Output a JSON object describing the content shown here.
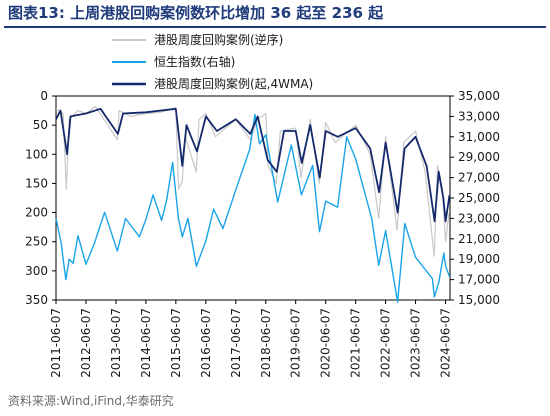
{
  "figure": {
    "title": "图表13:  上周港股回购案例数环比增加 36 起至 236 起",
    "source": "资料来源:Wind,iFind,华泰研究"
  },
  "chart_data": {
    "type": "line",
    "x_ticks": [
      "2011-06-07",
      "2012-06-07",
      "2013-06-07",
      "2014-06-07",
      "2015-06-07",
      "2016-06-07",
      "2017-06-07",
      "2018-06-07",
      "2019-06-07",
      "2020-06-07",
      "2021-06-07",
      "2022-06-07",
      "2023-06-07",
      "2024-06-07"
    ],
    "x_range": [
      "2011-06-07",
      "2024-07-31"
    ],
    "y_left": {
      "ticks": [
        0,
        50,
        100,
        150,
        200,
        250,
        300,
        350
      ],
      "range": [
        0,
        350
      ],
      "inverted": true
    },
    "y_right": {
      "ticks": [
        "15,000",
        "17,000",
        "19,000",
        "21,000",
        "23,000",
        "25,000",
        "27,000",
        "29,000",
        "31,000",
        "33,000",
        "35,000"
      ],
      "range": [
        15000,
        35000
      ]
    },
    "legend_position": "top-center",
    "series": [
      {
        "name": "港股周度回购案例(逆序)",
        "axis": "left",
        "color": "#c8c8c8",
        "points": [
          [
            "2011-06-07",
            22
          ],
          [
            "2011-09-01",
            30
          ],
          [
            "2011-10-10",
            160
          ],
          [
            "2011-11-15",
            40
          ],
          [
            "2012-03-01",
            25
          ],
          [
            "2012-06-07",
            30
          ],
          [
            "2012-10-01",
            18
          ],
          [
            "2013-06-25",
            75
          ],
          [
            "2013-07-15",
            25
          ],
          [
            "2013-12-01",
            35
          ],
          [
            "2014-06-07",
            30
          ],
          [
            "2014-12-01",
            28
          ],
          [
            "2015-06-07",
            20
          ],
          [
            "2015-07-10",
            160
          ],
          [
            "2015-08-25",
            145
          ],
          [
            "2015-10-01",
            70
          ],
          [
            "2016-02-10",
            130
          ],
          [
            "2016-03-15",
            40
          ],
          [
            "2016-06-07",
            30
          ],
          [
            "2016-10-01",
            70
          ],
          [
            "2017-06-07",
            40
          ],
          [
            "2017-12-01",
            75
          ],
          [
            "2018-03-01",
            40
          ],
          [
            "2018-06-07",
            30
          ],
          [
            "2018-07-05",
            120
          ],
          [
            "2018-10-15",
            150
          ],
          [
            "2018-12-01",
            60
          ],
          [
            "2019-06-07",
            55
          ],
          [
            "2019-08-10",
            140
          ],
          [
            "2019-12-01",
            40
          ],
          [
            "2020-03-20",
            150
          ],
          [
            "2020-06-07",
            45
          ],
          [
            "2020-10-01",
            80
          ],
          [
            "2021-06-07",
            50
          ],
          [
            "2021-12-01",
            100
          ],
          [
            "2022-03-15",
            210
          ],
          [
            "2022-06-07",
            70
          ],
          [
            "2022-10-25",
            230
          ],
          [
            "2023-01-15",
            80
          ],
          [
            "2023-06-07",
            60
          ],
          [
            "2023-10-01",
            130
          ],
          [
            "2024-01-20",
            275
          ],
          [
            "2024-03-01",
            120
          ],
          [
            "2024-05-01",
            160
          ],
          [
            "2024-06-07",
            250
          ],
          [
            "2024-07-20",
            200
          ]
        ]
      },
      {
        "name": "恒生指数(右轴)",
        "axis": "right",
        "color": "#1aa4e8",
        "points": [
          [
            "2011-06-07",
            23000
          ],
          [
            "2011-08-10",
            20500
          ],
          [
            "2011-10-04",
            17000
          ],
          [
            "2011-11-15",
            19000
          ],
          [
            "2012-01-01",
            18600
          ],
          [
            "2012-03-01",
            21300
          ],
          [
            "2012-06-07",
            18500
          ],
          [
            "2012-09-15",
            20500
          ],
          [
            "2013-01-20",
            23600
          ],
          [
            "2013-06-25",
            19800
          ],
          [
            "2013-10-01",
            23000
          ],
          [
            "2014-03-20",
            21200
          ],
          [
            "2014-06-07",
            22900
          ],
          [
            "2014-09-03",
            25300
          ],
          [
            "2014-12-15",
            22800
          ],
          [
            "2015-02-15",
            24800
          ],
          [
            "2015-04-28",
            28500
          ],
          [
            "2015-07-08",
            23000
          ],
          [
            "2015-08-25",
            21200
          ],
          [
            "2015-11-01",
            23000
          ],
          [
            "2016-02-12",
            18300
          ],
          [
            "2016-06-07",
            20800
          ],
          [
            "2016-09-09",
            23900
          ],
          [
            "2016-12-31",
            22000
          ],
          [
            "2017-06-07",
            25800
          ],
          [
            "2017-11-25",
            29800
          ],
          [
            "2018-01-26",
            33200
          ],
          [
            "2018-03-23",
            30300
          ],
          [
            "2018-06-07",
            31200
          ],
          [
            "2018-10-30",
            24600
          ],
          [
            "2019-04-15",
            30200
          ],
          [
            "2019-08-15",
            25300
          ],
          [
            "2019-12-31",
            28200
          ],
          [
            "2020-03-23",
            21700
          ],
          [
            "2020-06-07",
            24700
          ],
          [
            "2020-10-30",
            24100
          ],
          [
            "2021-02-18",
            31000
          ],
          [
            "2021-06-07",
            28800
          ],
          [
            "2021-12-20",
            23000
          ],
          [
            "2022-03-15",
            18400
          ],
          [
            "2022-06-07",
            21800
          ],
          [
            "2022-10-31",
            14800
          ],
          [
            "2023-01-27",
            22500
          ],
          [
            "2023-06-07",
            19200
          ],
          [
            "2023-12-30",
            17100
          ],
          [
            "2024-01-22",
            15300
          ],
          [
            "2024-03-15",
            16700
          ],
          [
            "2024-05-17",
            19600
          ],
          [
            "2024-06-07",
            18300
          ],
          [
            "2024-07-25",
            17300
          ]
        ]
      },
      {
        "name": "港股周度回购案例(起,4WMA)",
        "axis": "left",
        "color": "#14296b",
        "points": [
          [
            "2011-06-07",
            40
          ],
          [
            "2011-08-01",
            25
          ],
          [
            "2011-10-20",
            100
          ],
          [
            "2011-12-01",
            35
          ],
          [
            "2012-06-07",
            30
          ],
          [
            "2012-12-01",
            22
          ],
          [
            "2013-06-30",
            65
          ],
          [
            "2013-09-01",
            30
          ],
          [
            "2014-06-07",
            28
          ],
          [
            "2015-06-07",
            22
          ],
          [
            "2015-08-25",
            120
          ],
          [
            "2015-10-15",
            50
          ],
          [
            "2016-02-20",
            95
          ],
          [
            "2016-06-07",
            35
          ],
          [
            "2016-10-20",
            60
          ],
          [
            "2017-06-07",
            40
          ],
          [
            "2017-12-01",
            65
          ],
          [
            "2018-03-01",
            35
          ],
          [
            "2018-07-01",
            110
          ],
          [
            "2018-10-20",
            130
          ],
          [
            "2019-01-15",
            60
          ],
          [
            "2019-06-07",
            60
          ],
          [
            "2019-08-20",
            115
          ],
          [
            "2019-12-01",
            50
          ],
          [
            "2020-03-25",
            140
          ],
          [
            "2020-06-07",
            60
          ],
          [
            "2020-11-01",
            70
          ],
          [
            "2021-06-07",
            55
          ],
          [
            "2021-12-01",
            90
          ],
          [
            "2022-03-20",
            165
          ],
          [
            "2022-06-07",
            80
          ],
          [
            "2022-11-01",
            200
          ],
          [
            "2023-01-25",
            90
          ],
          [
            "2023-06-07",
            70
          ],
          [
            "2023-10-20",
            120
          ],
          [
            "2024-01-25",
            215
          ],
          [
            "2024-03-15",
            130
          ],
          [
            "2024-05-10",
            175
          ],
          [
            "2024-06-07",
            215
          ],
          [
            "2024-07-25",
            170
          ]
        ]
      }
    ]
  }
}
